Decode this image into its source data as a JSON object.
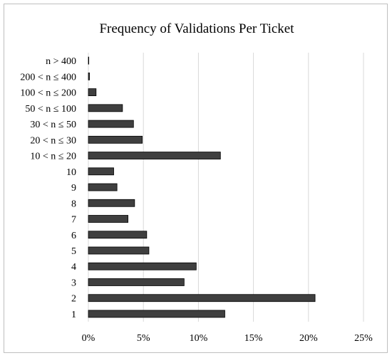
{
  "chart_data": {
    "type": "bar",
    "orientation": "horizontal",
    "title": "Frequency of Validations Per Ticket",
    "xlabel": "",
    "ylabel": "",
    "categories": [
      "n > 400",
      "200 < n ≤ 400",
      "100 < n ≤ 200",
      "50 < n ≤ 100",
      "30 < n ≤ 50",
      "20 < n ≤ 30",
      "10 < n ≤ 20",
      "10",
      "9",
      "8",
      "7",
      "6",
      "5",
      "4",
      "3",
      "2",
      "1"
    ],
    "values": [
      0.0,
      0.1,
      0.7,
      3.1,
      4.1,
      4.9,
      12.0,
      2.3,
      2.6,
      4.2,
      3.6,
      5.3,
      5.5,
      9.8,
      8.7,
      20.6,
      12.4
    ],
    "xlim": [
      0,
      25
    ],
    "xticks": [
      "0%",
      "5%",
      "10%",
      "15%",
      "20%",
      "25%"
    ],
    "grid": true,
    "legend": "none",
    "bar_color": "#3f3f3f",
    "grid_color": "#d9d9d9"
  }
}
